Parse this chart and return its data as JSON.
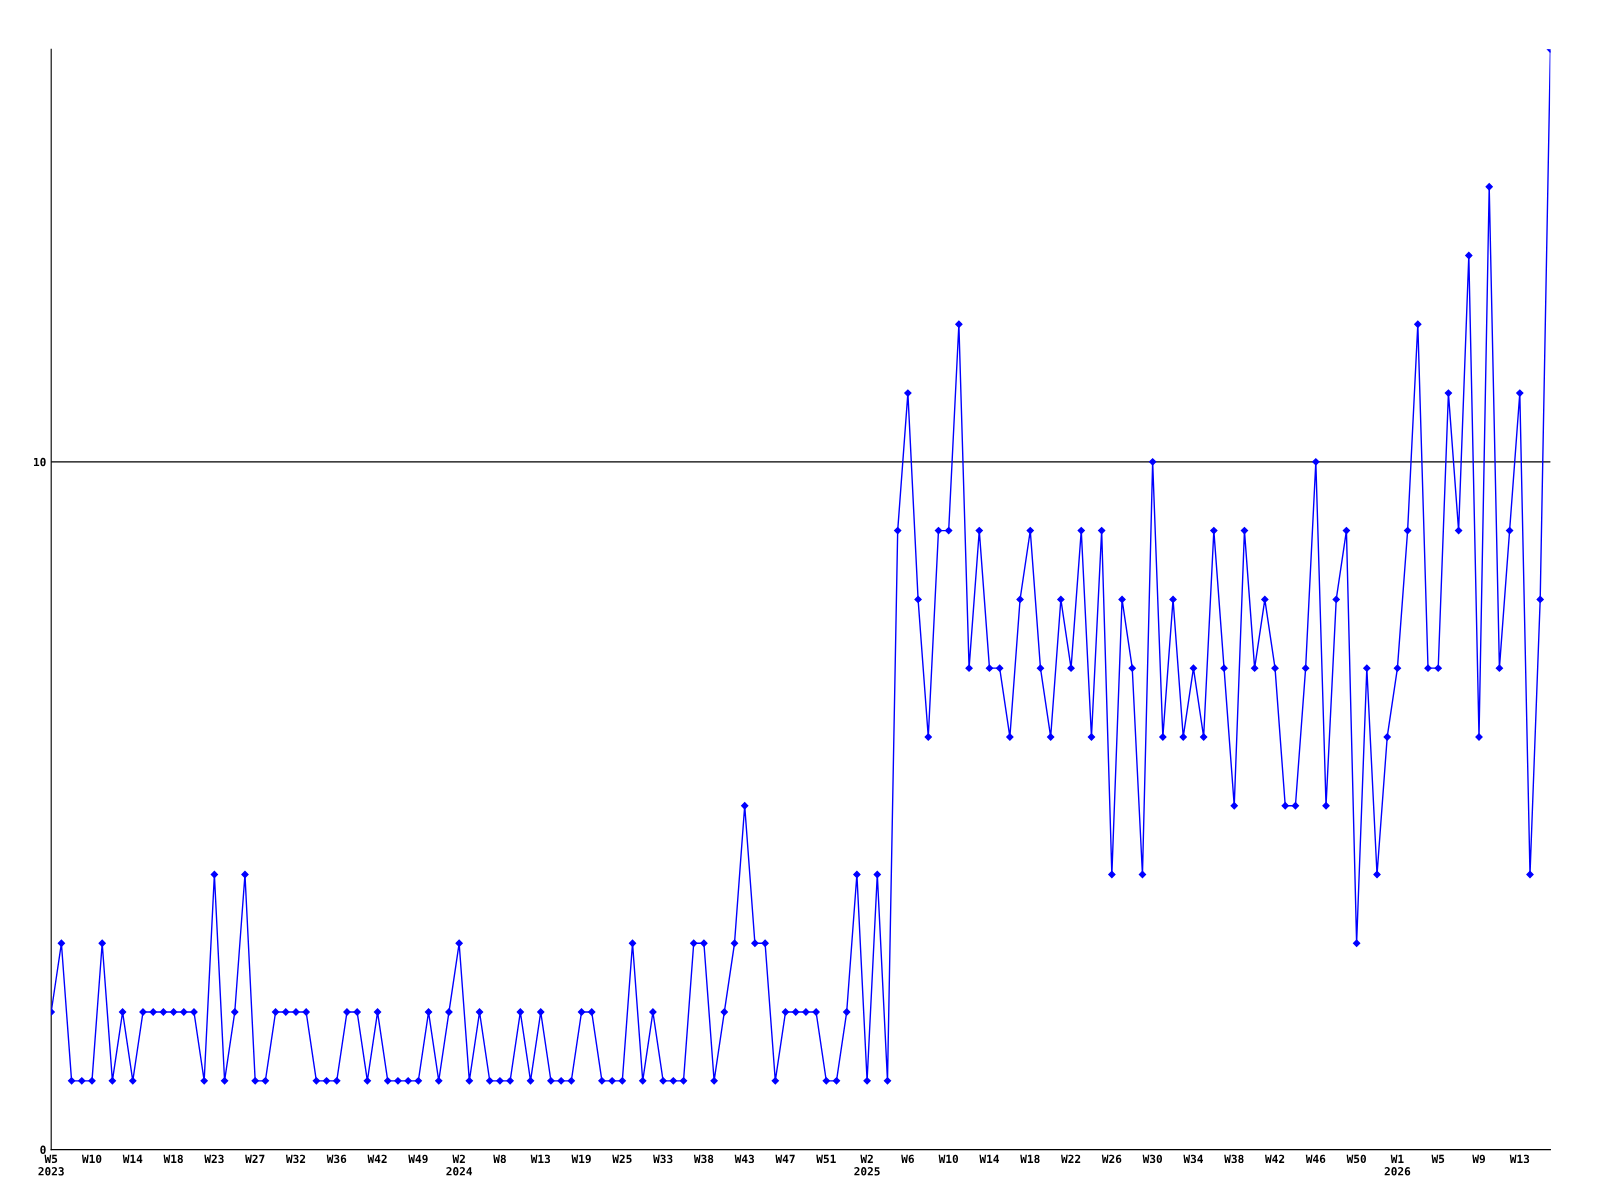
{
  "chart_data": {
    "type": "line",
    "categories": [
      "W5\n2023",
      null,
      null,
      null,
      "W10",
      null,
      null,
      null,
      "W14",
      null,
      null,
      null,
      "W18",
      null,
      null,
      null,
      "W23",
      null,
      null,
      null,
      "W27",
      null,
      null,
      null,
      "W32",
      null,
      null,
      null,
      "W36",
      null,
      null,
      null,
      "W42",
      null,
      null,
      null,
      "W49",
      null,
      null,
      null,
      "W2\n2024",
      null,
      null,
      null,
      "W8",
      null,
      null,
      null,
      "W13",
      null,
      null,
      null,
      "W19",
      null,
      null,
      null,
      "W25",
      null,
      null,
      null,
      "W33",
      null,
      null,
      null,
      "W38",
      null,
      null,
      null,
      "W43",
      null,
      null,
      null,
      "W47",
      null,
      null,
      null,
      "W51",
      null,
      null,
      null,
      "W2\n2025",
      null,
      null,
      null,
      "W6",
      null,
      null,
      null,
      "W10",
      null,
      null,
      null,
      "W14",
      null,
      null,
      null,
      "W18",
      null,
      null,
      null,
      "W22",
      null,
      null,
      null,
      "W26",
      null,
      null,
      null,
      "W30",
      null,
      null,
      null,
      "W34",
      null,
      null,
      null,
      "W38",
      null,
      null,
      null,
      "W42",
      null,
      null,
      null,
      "W46",
      null,
      null,
      null,
      "W50",
      null,
      null,
      null,
      "W1\n2026",
      null,
      null,
      null,
      "W5",
      null,
      null,
      null,
      "W9",
      null,
      null,
      null,
      "W13",
      null,
      null,
      null
    ],
    "series": [
      {
        "color": "#0000ff",
        "values": [
          2,
          3,
          1,
          1,
          1,
          3,
          1,
          2,
          1,
          2,
          2,
          2,
          2,
          2,
          2,
          1,
          4,
          1,
          2,
          4,
          1,
          1,
          2,
          2,
          2,
          2,
          1,
          1,
          1,
          2,
          2,
          1,
          2,
          1,
          1,
          1,
          1,
          2,
          1,
          2,
          3,
          1,
          2,
          1,
          1,
          1,
          2,
          1,
          2,
          1,
          1,
          1,
          2,
          2,
          1,
          1,
          1,
          3,
          1,
          2,
          1,
          1,
          1,
          3,
          3,
          1,
          2,
          3,
          5,
          3,
          3,
          1,
          2,
          2,
          2,
          2,
          1,
          1,
          2,
          4,
          1,
          4,
          1,
          9,
          11,
          8,
          6,
          9,
          9,
          12,
          7,
          9,
          7,
          7,
          6,
          8,
          9,
          7,
          6,
          8,
          7,
          9,
          6,
          9,
          4,
          8,
          7,
          4,
          10,
          6,
          8,
          6,
          7,
          6,
          9,
          7,
          5,
          9,
          7,
          8,
          7,
          5,
          5,
          7,
          10,
          5,
          8,
          9,
          3,
          7,
          4,
          6,
          7,
          9,
          12,
          7,
          7,
          11,
          9,
          13,
          6,
          14,
          7,
          9,
          11,
          4,
          8,
          16
        ]
      }
    ],
    "ylim": [
      0,
      16
    ],
    "yticks": [
      0,
      10
    ],
    "grid": "y",
    "marker": "diamond",
    "line_style": "solid",
    "legend": false
  }
}
